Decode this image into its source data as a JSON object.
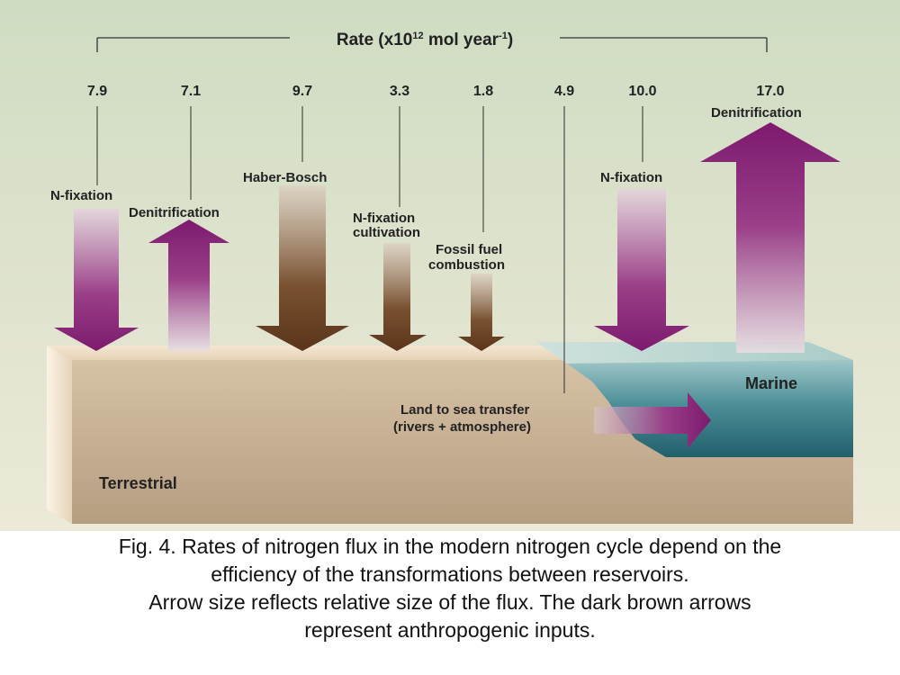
{
  "header": {
    "rate_label": "Rate (x10",
    "rate_exponent": "12",
    "rate_unit": " mol year",
    "rate_unit_exponent": "-1",
    "rate_close": ")"
  },
  "colors": {
    "background": "#dfe6d2",
    "natural_arrow": "#7d1a6e",
    "anthropogenic_arrow": "#5a341a",
    "land": "#cdb89c",
    "sea": "#2b6a75"
  },
  "fluxes": [
    {
      "rate": "7.9",
      "label": [
        "N-fixation"
      ],
      "direction": "down",
      "type": "natural"
    },
    {
      "rate": "7.1",
      "label": [
        "Denitrification"
      ],
      "direction": "up",
      "type": "natural"
    },
    {
      "rate": "9.7",
      "label": [
        "Haber-Bosch"
      ],
      "direction": "down",
      "type": "anthropogenic"
    },
    {
      "rate": "3.3",
      "label": [
        "N-fixation",
        "cultivation"
      ],
      "direction": "down",
      "type": "anthropogenic"
    },
    {
      "rate": "1.8",
      "label": [
        "Fossil fuel",
        "combustion"
      ],
      "direction": "down",
      "type": "anthropogenic"
    },
    {
      "rate": "4.9",
      "label": [
        "Land to sea transfer",
        "(rivers + atmosphere)"
      ],
      "direction": "right",
      "type": "natural"
    },
    {
      "rate": "10.0",
      "label": [
        "N-fixation"
      ],
      "direction": "down",
      "type": "natural"
    },
    {
      "rate": "17.0",
      "label": [
        "Denitrification"
      ],
      "direction": "up",
      "type": "natural"
    }
  ],
  "regions": {
    "terrestrial": "Terrestrial",
    "marine": "Marine"
  },
  "caption": [
    "Fig. 4. Rates of nitrogen flux in the modern nitrogen cycle depend on the",
    "efficiency of the transformations between reservoirs.",
    "Arrow size reflects relative size of the flux. The dark brown arrows",
    "represent anthropogenic inputs."
  ]
}
